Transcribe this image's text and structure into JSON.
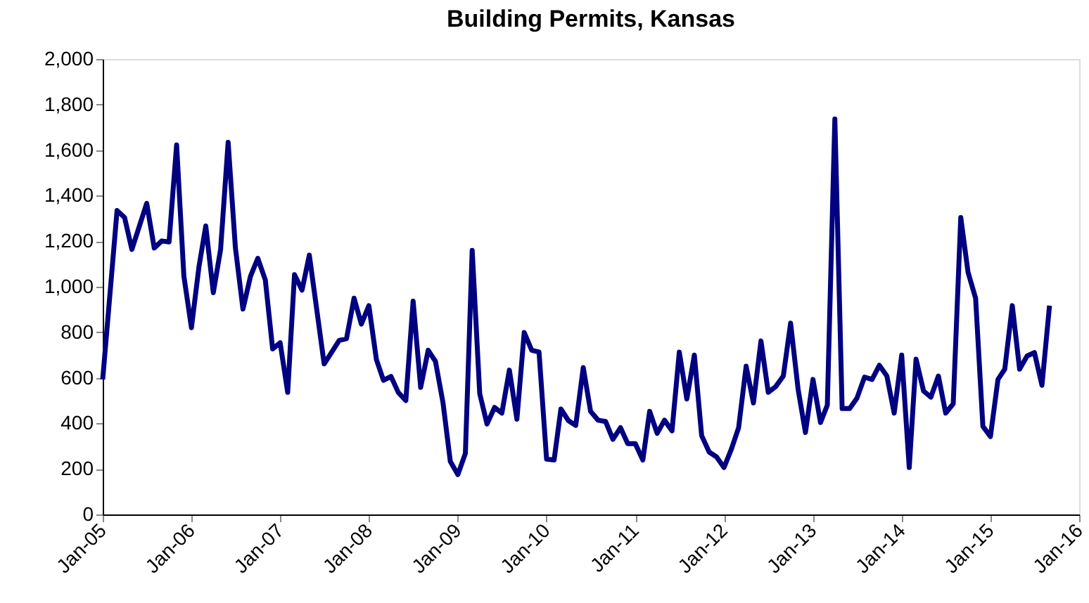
{
  "chart_data": {
    "type": "line",
    "title": "Building Permits, Kansas",
    "x": [
      "2005-01",
      "2005-03",
      "2005-04",
      "2005-05",
      "2005-07",
      "2005-08",
      "2005-09",
      "2005-10",
      "2005-11",
      "2005-12",
      "2006-01",
      "2006-02",
      "2006-03",
      "2006-04",
      "2006-05",
      "2006-06",
      "2006-07",
      "2006-08",
      "2006-09",
      "2006-10",
      "2006-11",
      "2006-12",
      "2007-01",
      "2007-02",
      "2007-03",
      "2007-04",
      "2007-05",
      "2007-07",
      "2007-09",
      "2007-10",
      "2007-11",
      "2007-12",
      "2008-01",
      "2008-02",
      "2008-03",
      "2008-04",
      "2008-05",
      "2008-06",
      "2008-07",
      "2008-08",
      "2008-09",
      "2008-10",
      "2008-11",
      "2008-12",
      "2009-01",
      "2009-02",
      "2009-03",
      "2009-04",
      "2009-05",
      "2009-06",
      "2009-07",
      "2009-08",
      "2009-09",
      "2009-10",
      "2009-11",
      "2009-12",
      "2010-01",
      "2010-02",
      "2010-03",
      "2010-04",
      "2010-05",
      "2010-06",
      "2010-07",
      "2010-08",
      "2010-09",
      "2010-10",
      "2010-11",
      "2010-12",
      "2011-01",
      "2011-02",
      "2011-03",
      "2011-04",
      "2011-05",
      "2011-06",
      "2011-07",
      "2011-08",
      "2011-09",
      "2011-10",
      "2011-11",
      "2011-12",
      "2012-01",
      "2012-02",
      "2012-03",
      "2012-04",
      "2012-05",
      "2012-06",
      "2012-07",
      "2012-08",
      "2012-09",
      "2012-10",
      "2012-11",
      "2012-12",
      "2013-01",
      "2013-02",
      "2013-03",
      "2013-04",
      "2013-05",
      "2013-06",
      "2013-07",
      "2013-08",
      "2013-09",
      "2013-10",
      "2013-11",
      "2013-12",
      "2014-01",
      "2014-02",
      "2014-03",
      "2014-04",
      "2014-05",
      "2014-06",
      "2014-07",
      "2014-08",
      "2014-09",
      "2014-10",
      "2014-11",
      "2014-12",
      "2015-01",
      "2015-02",
      "2015-03",
      "2015-04",
      "2015-05",
      "2015-06",
      "2015-07",
      "2015-08",
      "2015-09"
    ],
    "series": [
      {
        "color": "#000080",
        "values": [
          593,
          1335,
          1304,
          1164,
          1366,
          1170,
          1201,
          1197,
          1623,
          1046,
          820,
          1088,
          1267,
          974,
          1164,
          1634,
          1170,
          902,
          1046,
          1125,
          1030,
          727,
          754,
          536,
          1053,
          985,
          1139,
          661,
          764,
          772,
          950,
          836,
          917,
          680,
          589,
          606,
          536,
          500,
          937,
          558,
          721,
          672,
          490,
          233,
          175,
          268,
          1160,
          531,
          397,
          470,
          445,
          634,
          418,
          799,
          721,
          713,
          243,
          239,
          463,
          412,
          391,
          645,
          453,
          414,
          408,
          330,
          381,
          311,
          311,
          239,
          453,
          356,
          414,
          367,
          713,
          507,
          700,
          346,
          274,
          253,
          206,
          289,
          381,
          651,
          490,
          762,
          536,
          562,
          608,
          840,
          548,
          360,
          593,
          404,
          480,
          1737,
          465,
          465,
          511,
          603,
          593,
          655,
          608,
          445,
          700,
          206,
          682,
          542,
          515,
          608,
          445,
          486,
          1304,
          1063,
          950,
          387,
          342,
          593,
          638,
          917,
          638,
          696,
          711,
          567,
          917
        ]
      }
    ],
    "xlim": [
      "2005-01",
      "2016-01"
    ],
    "xticks": [
      {
        "value": "2005-01",
        "label": "Jan-05"
      },
      {
        "value": "2006-01",
        "label": "Jan-06"
      },
      {
        "value": "2007-01",
        "label": "Jan-07"
      },
      {
        "value": "2008-01",
        "label": "Jan-08"
      },
      {
        "value": "2009-01",
        "label": "Jan-09"
      },
      {
        "value": "2010-01",
        "label": "Jan-10"
      },
      {
        "value": "2011-01",
        "label": "Jan-11"
      },
      {
        "value": "2012-01",
        "label": "Jan-12"
      },
      {
        "value": "2013-01",
        "label": "Jan-13"
      },
      {
        "value": "2014-01",
        "label": "Jan-14"
      },
      {
        "value": "2015-01",
        "label": "Jan-15"
      },
      {
        "value": "2016-01",
        "label": "Jan-16"
      }
    ],
    "ylim": [
      0,
      2000
    ],
    "yticks": [
      {
        "value": 0,
        "label": "0"
      },
      {
        "value": 200,
        "label": "200"
      },
      {
        "value": 400,
        "label": "400"
      },
      {
        "value": 600,
        "label": "600"
      },
      {
        "value": 800,
        "label": "800"
      },
      {
        "value": 1000,
        "label": "1,000"
      },
      {
        "value": 1200,
        "label": "1,200"
      },
      {
        "value": 1400,
        "label": "1,400"
      },
      {
        "value": 1600,
        "label": "1,600"
      },
      {
        "value": 1800,
        "label": "1,800"
      },
      {
        "value": 2000,
        "label": "2,000"
      }
    ],
    "grid": false,
    "marker": "none",
    "line_style": "solid"
  }
}
